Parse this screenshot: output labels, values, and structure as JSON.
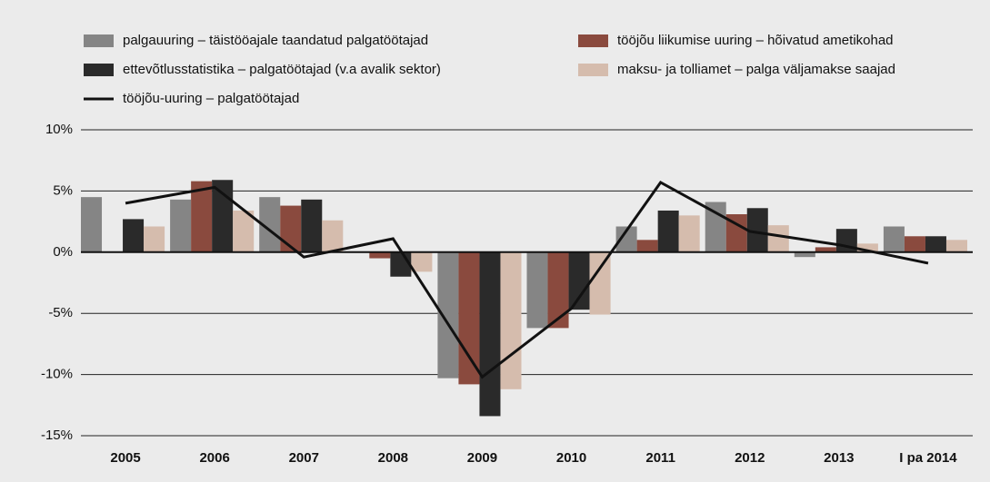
{
  "chart_data": {
    "type": "bar",
    "categories": [
      "2005",
      "2006",
      "2007",
      "2008",
      "2009",
      "2010",
      "2011",
      "2012",
      "2013",
      "I pa 2014"
    ],
    "series": [
      {
        "name": "palgauuring – täistööajale taandatud palgatöötajad",
        "type": "bar",
        "color": "#858585",
        "values": [
          4.5,
          4.3,
          4.5,
          null,
          -10.3,
          -6.2,
          2.1,
          4.1,
          -0.4,
          2.1
        ]
      },
      {
        "name": "tööjõu liikumise uuring – hõivatud ametikohad",
        "type": "bar",
        "color": "#8a4a3e",
        "values": [
          null,
          5.8,
          3.8,
          -0.5,
          -10.8,
          -6.2,
          1.0,
          3.1,
          0.4,
          1.3
        ]
      },
      {
        "name": "ettevõtlusstatistika – palgatöötajad (v.a avalik sektor)",
        "type": "bar",
        "color": "#2a2a2a",
        "values": [
          2.7,
          5.9,
          4.3,
          -2.0,
          -13.4,
          -4.7,
          3.4,
          3.6,
          1.9,
          1.3
        ]
      },
      {
        "name": "maksu- ja tolliamet – palga väljamakse saajad",
        "type": "bar",
        "color": "#d5bcad",
        "values": [
          2.1,
          3.4,
          2.6,
          -1.6,
          -11.2,
          -5.1,
          3.0,
          2.2,
          0.7,
          1.0
        ]
      },
      {
        "name": "tööjõu-uuring – palgatöötajad",
        "type": "line",
        "color": "#111111",
        "values": [
          4.0,
          5.3,
          -0.4,
          1.1,
          -10.2,
          -4.6,
          5.7,
          1.7,
          0.6,
          -0.9
        ]
      }
    ],
    "ylim": [
      -15,
      10
    ],
    "yticks": [
      {
        "value": -15,
        "label": "-15%"
      },
      {
        "value": -10,
        "label": "-10%"
      },
      {
        "value": -5,
        "label": "-5%"
      },
      {
        "value": 0,
        "label": "0%"
      },
      {
        "value": 5,
        "label": "5%"
      },
      {
        "value": 10,
        "label": "10%"
      }
    ],
    "grid": true
  }
}
